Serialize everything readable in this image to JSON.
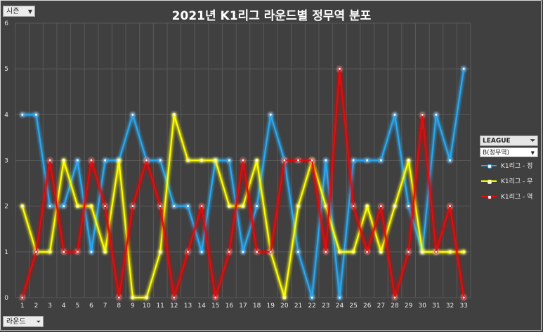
{
  "filters": {
    "season_label": "시즌",
    "round_label": "라운드",
    "league_label": "LEAGUE",
    "type_select_value": "B(정무역)"
  },
  "icons": {
    "filter": "filter-funnel-icon",
    "dropdown": "chevron-down-icon"
  },
  "colors": {
    "background": "#404040",
    "win": "#2aa8f0",
    "draw": "#ffff00",
    "loss": "#e01010"
  },
  "chart_data": {
    "type": "line",
    "title": "2021년 K1리그 라운드별 정무역 분포",
    "xlabel": "",
    "ylabel": "",
    "categories": [
      "1",
      "2",
      "3",
      "4",
      "5",
      "6",
      "7",
      "8",
      "9",
      "10",
      "11",
      "12",
      "13",
      "14",
      "15",
      "16",
      "17",
      "18",
      "19",
      "20",
      "21",
      "22",
      "23",
      "24",
      "25",
      "26",
      "27",
      "28",
      "29",
      "30",
      "31",
      "32",
      "33"
    ],
    "y_ticks": [
      "0",
      "1",
      "2",
      "3",
      "4",
      "5",
      "6"
    ],
    "ylim": [
      0,
      6
    ],
    "grid": true,
    "legend_position": "right",
    "series": [
      {
        "name": "K1리그 - 정",
        "color": "#2aa8f0",
        "values": [
          4,
          4,
          2,
          2,
          3,
          1,
          3,
          3,
          4,
          3,
          3,
          2,
          2,
          1,
          3,
          3,
          1,
          2,
          4,
          3,
          1,
          0,
          3,
          0,
          3,
          3,
          3,
          4,
          2,
          1,
          4,
          3,
          5
        ]
      },
      {
        "name": "K1리그 - 무",
        "color": "#ffff00",
        "values": [
          2,
          1,
          1,
          3,
          2,
          2,
          1,
          3,
          0,
          0,
          1,
          4,
          3,
          3,
          3,
          2,
          2,
          3,
          1,
          0,
          2,
          3,
          2,
          1,
          1,
          2,
          1,
          2,
          3,
          1,
          1,
          1,
          1
        ]
      },
      {
        "name": "K1리그 - 역",
        "color": "#e01010",
        "values": [
          0,
          1,
          3,
          1,
          1,
          3,
          2,
          0,
          2,
          3,
          2,
          0,
          1,
          2,
          0,
          1,
          3,
          1,
          1,
          3,
          3,
          3,
          1,
          5,
          2,
          1,
          2,
          0,
          1,
          4,
          1,
          2,
          0
        ]
      }
    ]
  }
}
